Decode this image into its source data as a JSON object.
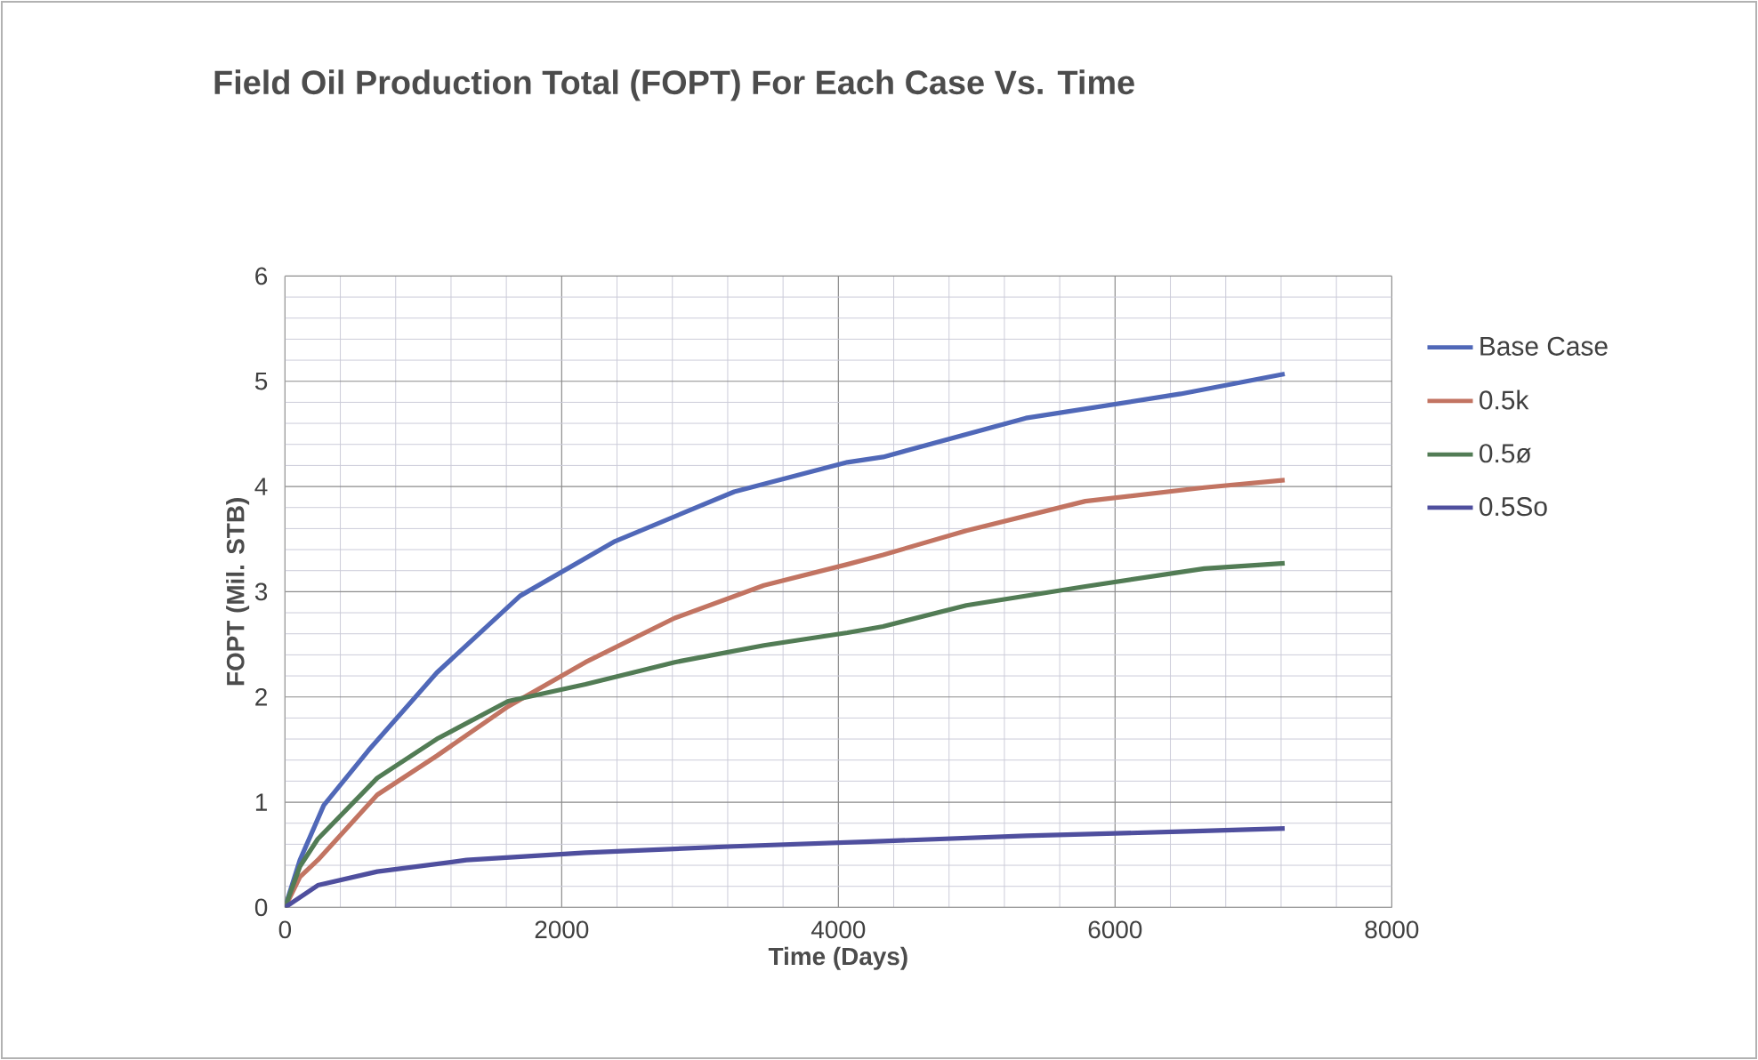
{
  "chart_data": {
    "type": "line",
    "title": "Field Oil Production Total (FOPT) For Each Case Vs. Time",
    "xlabel": "Time (Days)",
    "ylabel": "FOPT (Mil. STB)",
    "xlim": [
      0,
      8000
    ],
    "ylim": [
      0,
      6
    ],
    "xticks": [
      0,
      2000,
      4000,
      6000,
      8000
    ],
    "yticks": [
      0,
      1,
      2,
      3,
      4,
      5,
      6
    ],
    "grid": true,
    "legend": "right",
    "marker": "none",
    "line_style": "solid",
    "series": [
      {
        "name": "Base Case",
        "color": "#5068b8",
        "x": [
          0,
          108,
          194,
          280,
          602,
          1097,
          1699,
          2387,
          3247,
          4065,
          4323,
          5355,
          6473,
          7226
        ],
        "values": [
          0,
          0.45,
          0.71,
          0.97,
          1.49,
          2.23,
          2.96,
          3.48,
          3.95,
          4.23,
          4.28,
          4.65,
          4.88,
          5.07
        ]
      },
      {
        "name": "0.5k",
        "color": "#c27462",
        "x": [
          0,
          108,
          237,
          667,
          1097,
          1613,
          2172,
          2817,
          3462,
          4065,
          4323,
          4925,
          5785,
          6645,
          7226
        ],
        "values": [
          0,
          0.29,
          0.45,
          1.07,
          1.44,
          1.91,
          2.33,
          2.75,
          3.06,
          3.26,
          3.35,
          3.58,
          3.86,
          3.99,
          4.06
        ]
      },
      {
        "name": "0.5ø",
        "color": "#527c55",
        "x": [
          0,
          108,
          237,
          667,
          1097,
          1613,
          2172,
          2817,
          3462,
          4065,
          4323,
          4925,
          5785,
          6645,
          7226
        ],
        "values": [
          0,
          0.39,
          0.65,
          1.23,
          1.6,
          1.96,
          2.12,
          2.33,
          2.49,
          2.61,
          2.67,
          2.87,
          3.05,
          3.22,
          3.27
        ]
      },
      {
        "name": "0.5So",
        "color": "#4f4f9e",
        "x": [
          0,
          237,
          667,
          1312,
          2172,
          3247,
          4323,
          5355,
          6473,
          7226
        ],
        "values": [
          0,
          0.21,
          0.34,
          0.45,
          0.52,
          0.58,
          0.63,
          0.68,
          0.72,
          0.75
        ]
      }
    ]
  }
}
